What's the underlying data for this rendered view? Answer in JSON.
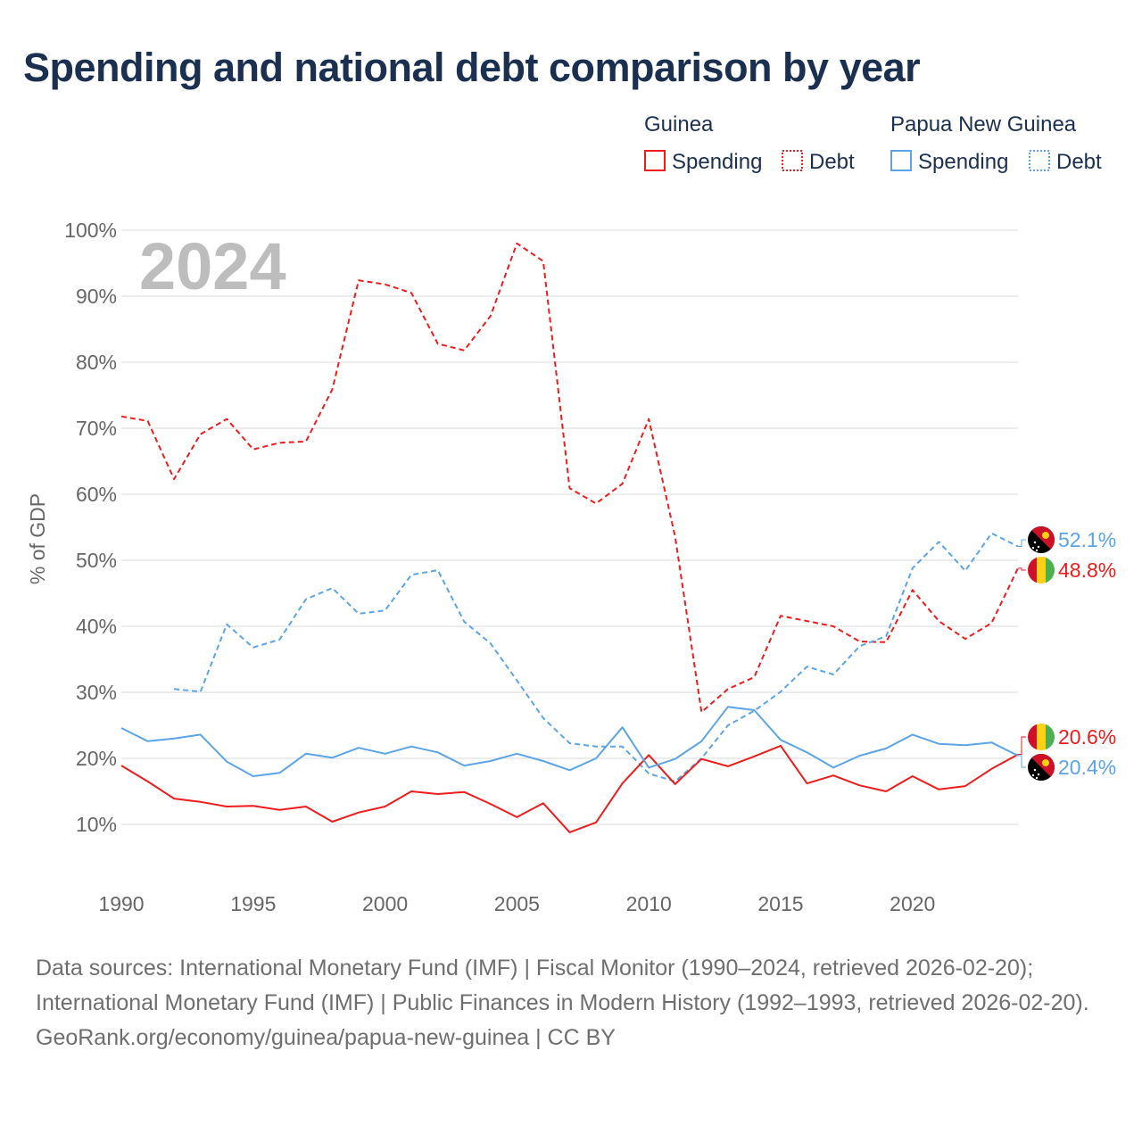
{
  "title": "Spending and national debt comparison by year",
  "footer": {
    "sources": "Data sources: International Monetary Fund (IMF) | Fiscal Monitor (1990–2024, retrieved 2026-02-20); International Monetary Fund (IMF) | Public Finances in Modern History (1992–1993, retrieved 2026-02-20).",
    "credit": "GeoRank.org/economy/guinea/papua-new-guinea | CC BY"
  },
  "chart_data": {
    "type": "line",
    "title": "Spending and national debt comparison by year",
    "year_label": "2024",
    "xlabel": "",
    "ylabel": "% of GDP",
    "xlim": [
      1990,
      2024
    ],
    "ylim": [
      0,
      100
    ],
    "x_ticks": [
      "1990",
      "1995",
      "2000",
      "2005",
      "2010",
      "2015",
      "2020"
    ],
    "y_ticks": [
      "10%",
      "20%",
      "30%",
      "40%",
      "50%",
      "60%",
      "70%",
      "80%",
      "90%",
      "100%"
    ],
    "legend": {
      "groups": [
        {
          "country": "Guinea",
          "items": [
            "Spending",
            "Debt"
          ]
        },
        {
          "country": "Papua New Guinea",
          "items": [
            "Spending",
            "Debt"
          ]
        }
      ],
      "placement": "top-right"
    },
    "colors": {
      "guinea": "#ee1c1c",
      "png": "#5ba4e6"
    },
    "start_year": 1990,
    "series": [
      {
        "name": "Guinea Debt",
        "country": "guinea",
        "style": "dashed",
        "start": 1990,
        "values": [
          71.8,
          71.1,
          62.3,
          69.1,
          71.4,
          66.8,
          67.8,
          68.0,
          75.9,
          92.4,
          91.8,
          90.5,
          82.8,
          81.8,
          87.0,
          98.0,
          95.3,
          60.9,
          58.6,
          61.6,
          71.4,
          53.6,
          27.0,
          30.5,
          32.3,
          41.6,
          40.8,
          40.0,
          37.7,
          37.6,
          45.5,
          40.8,
          38.1,
          40.5,
          48.8
        ],
        "end_label": "48.8%"
      },
      {
        "name": "Papua New Guinea Debt",
        "country": "png",
        "style": "dashed",
        "start": 1992,
        "values": [
          30.5,
          30.1,
          40.3,
          36.8,
          38.0,
          44.1,
          45.8,
          41.9,
          42.4,
          47.8,
          48.5,
          40.7,
          37.4,
          31.8,
          26.1,
          22.3,
          21.8,
          21.8,
          17.7,
          16.5,
          20.0,
          25.0,
          27.2,
          30.1,
          33.9,
          32.7,
          37.0,
          38.5,
          48.8,
          52.8,
          48.4,
          54.1,
          52.1
        ],
        "end_label": "52.1%"
      },
      {
        "name": "Guinea Spending",
        "country": "guinea",
        "style": "solid",
        "start": 1990,
        "values": [
          18.9,
          16.5,
          13.9,
          13.4,
          12.7,
          12.8,
          12.2,
          12.7,
          10.4,
          11.8,
          12.7,
          15.0,
          14.6,
          14.9,
          13.1,
          11.1,
          13.2,
          8.8,
          10.3,
          16.2,
          20.5,
          16.1,
          19.9,
          18.8,
          20.3,
          21.9,
          16.2,
          17.4,
          15.9,
          15.0,
          17.3,
          15.3,
          15.8,
          18.4,
          20.6
        ],
        "end_label": "20.6%"
      },
      {
        "name": "Papua New Guinea Spending",
        "country": "png",
        "style": "solid",
        "start": 1990,
        "values": [
          24.6,
          22.6,
          23.0,
          23.6,
          19.5,
          17.3,
          17.8,
          20.7,
          20.1,
          21.6,
          20.7,
          21.8,
          20.9,
          18.9,
          19.6,
          20.7,
          19.6,
          18.2,
          20.0,
          24.7,
          18.6,
          19.9,
          22.6,
          27.8,
          27.3,
          22.8,
          20.9,
          18.6,
          20.4,
          21.5,
          23.6,
          22.2,
          22.0,
          22.4,
          20.4
        ],
        "end_label": "20.4%"
      }
    ]
  }
}
